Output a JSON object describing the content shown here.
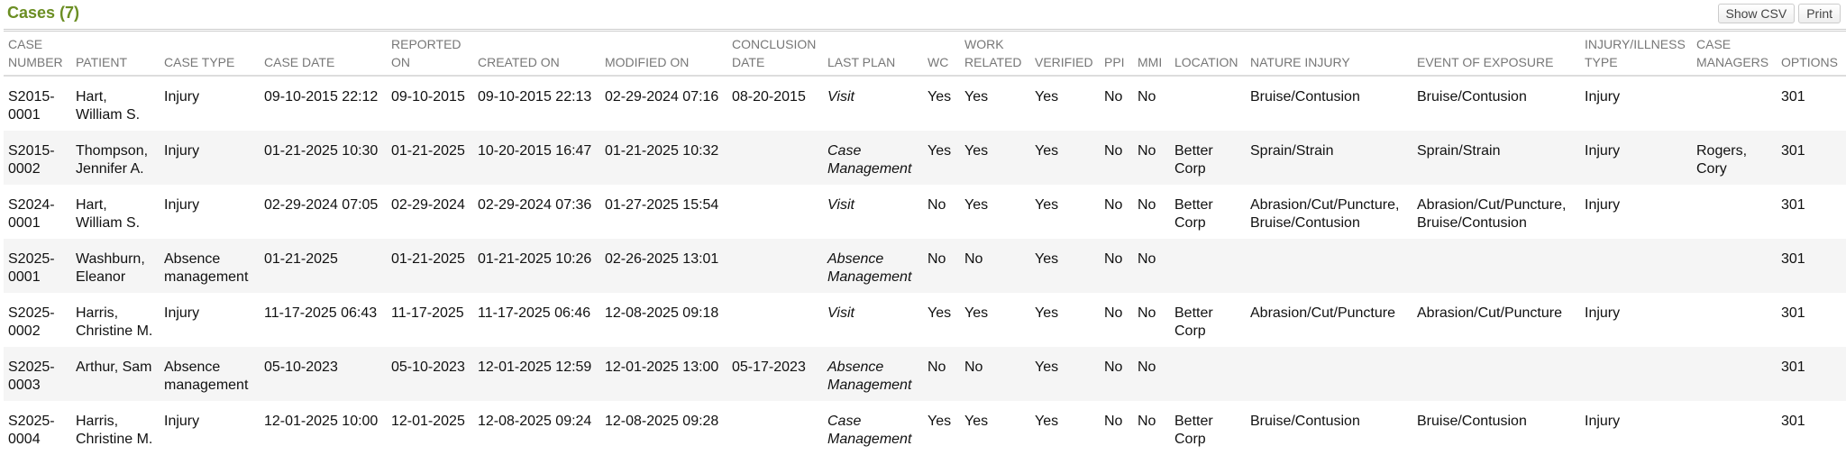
{
  "header": {
    "title": "Cases (7)",
    "buttons": [
      "Show CSV",
      "Print"
    ]
  },
  "table": {
    "columns": [
      "CASE NUMBER",
      "PATIENT",
      "CASE TYPE",
      "CASE DATE",
      "REPORTED ON",
      "CREATED ON",
      "MODIFIED ON",
      "CONCLUSION DATE",
      "LAST PLAN",
      "WC",
      "WORK RELATED",
      "VERIFIED",
      "PPI",
      "MMI",
      "LOCATION",
      "NATURE INJURY",
      "EVENT OF EXPOSURE",
      "INJURY/ILLNESS TYPE",
      "CASE MANAGERS",
      "OPTIONS"
    ],
    "rows": [
      [
        "S2015-0001",
        "Hart, William S.",
        "Injury",
        "09-10-2015 22:12",
        "09-10-2015",
        "09-10-2015 22:13",
        "02-29-2024 07:16",
        "08-20-2015",
        "Visit",
        "Yes",
        "Yes",
        "Yes",
        "No",
        "No",
        null,
        "Bruise/Contusion",
        "Bruise/Contusion",
        "Injury",
        null,
        "301"
      ],
      [
        "S2015-0002",
        "Thompson, Jennifer A.",
        "Injury",
        "01-21-2025 10:30",
        "01-21-2025",
        "10-20-2015 16:47",
        "01-21-2025 10:32",
        null,
        "Case Management",
        "Yes",
        "Yes",
        "Yes",
        "No",
        "No",
        "Better Corp",
        "Sprain/Strain",
        "Sprain/Strain",
        "Injury",
        "Rogers, Cory",
        "301"
      ],
      [
        "S2024-0001",
        "Hart, William S.",
        "Injury",
        "02-29-2024 07:05",
        "02-29-2024",
        "02-29-2024 07:36",
        "01-27-2025 15:54",
        null,
        "Visit",
        "No",
        "Yes",
        "Yes",
        "No",
        "No",
        "Better Corp",
        "Abrasion/Cut/Puncture, Bruise/Contusion",
        "Abrasion/Cut/Puncture, Bruise/Contusion",
        "Injury",
        null,
        "301"
      ],
      [
        "S2025-0001",
        "Washburn, Eleanor",
        "Absence management",
        "01-21-2025",
        "01-21-2025",
        "01-21-2025 10:26",
        "02-26-2025 13:01",
        null,
        "Absence Management",
        "No",
        "No",
        "Yes",
        "No",
        "No",
        null,
        null,
        null,
        null,
        null,
        "301"
      ],
      [
        "S2025-0002",
        "Harris, Christine M.",
        "Injury",
        "11-17-2025 06:43",
        "11-17-2025",
        "11-17-2025 06:46",
        "12-08-2025 09:18",
        null,
        "Visit",
        "Yes",
        "Yes",
        "Yes",
        "No",
        "No",
        "Better Corp",
        "Abrasion/Cut/Puncture",
        "Abrasion/Cut/Puncture",
        "Injury",
        null,
        "301"
      ],
      [
        "S2025-0003",
        "Arthur, Sam",
        "Absence management",
        "05-10-2023",
        "05-10-2023",
        "12-01-2025 12:59",
        "12-01-2025 13:00",
        "05-17-2023",
        "Absence Management",
        "No",
        "No",
        "Yes",
        "No",
        "No",
        null,
        null,
        null,
        null,
        null,
        "301"
      ],
      [
        "S2025-0004",
        "Harris, Christine M.",
        "Injury",
        "12-01-2025 10:00",
        "12-01-2025",
        "12-08-2025 09:24",
        "12-08-2025 09:28",
        null,
        "Case Management",
        "Yes",
        "Yes",
        "Yes",
        "No",
        "No",
        "Better Corp",
        "Bruise/Contusion",
        "Bruise/Contusion",
        "Injury",
        null,
        "301"
      ]
    ]
  }
}
